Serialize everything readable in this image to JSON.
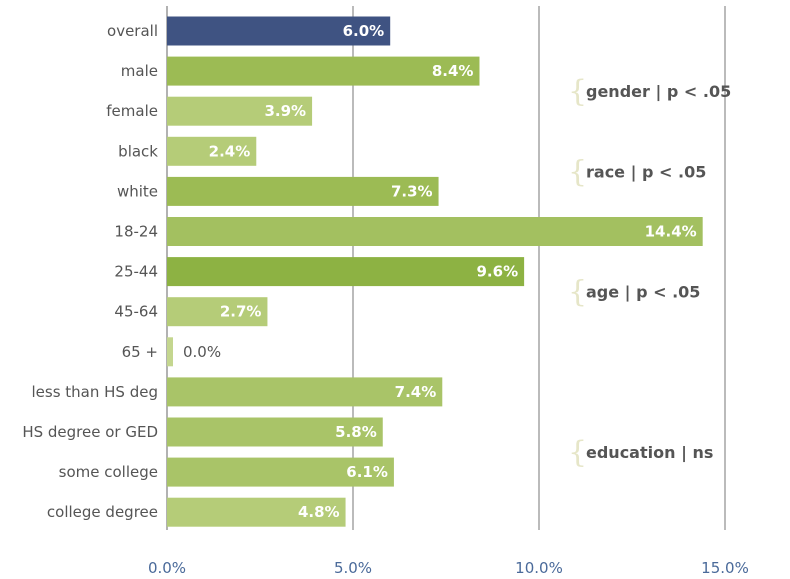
{
  "chart_data": {
    "type": "bar",
    "orientation": "horizontal",
    "categories": [
      "overall",
      "male",
      "female",
      "black",
      "white",
      "18-24",
      "25-44",
      "45-64",
      "65 +",
      "less than HS deg",
      "HS degree or GED",
      "some college",
      "college degree"
    ],
    "values": [
      6.0,
      8.4,
      3.9,
      2.4,
      7.3,
      14.4,
      9.6,
      2.7,
      0.0,
      7.4,
      5.8,
      6.1,
      4.8
    ],
    "value_labels": [
      "6.0%",
      "8.4%",
      "3.9%",
      "2.4%",
      "7.3%",
      "14.4%",
      "9.6%",
      "2.7%",
      "0.0%",
      "7.4%",
      "5.8%",
      "6.1%",
      "4.8%"
    ],
    "bar_colors": [
      "#3f5382",
      "#9cbb54",
      "#b5cc78",
      "#b5cc78",
      "#9cbb54",
      "#a3c060",
      "#8db243",
      "#b5cc78",
      "#c4d68f",
      "#a9c468",
      "#a9c468",
      "#a9c468",
      "#b5cc78"
    ],
    "xlim": [
      0,
      15
    ],
    "xticks": [
      0,
      5,
      10,
      15
    ],
    "xtick_labels": [
      "0.0%",
      "5.0%",
      "10.0%",
      "15.0%"
    ],
    "grid": true,
    "groups": [
      {
        "label": "gender | p < .05",
        "rows": [
          1,
          2
        ]
      },
      {
        "label": "race | p < .05",
        "rows": [
          3,
          4
        ]
      },
      {
        "label": "age | p < .05",
        "rows": [
          5,
          8
        ]
      },
      {
        "label": "education | ns",
        "rows": [
          9,
          12
        ]
      }
    ]
  }
}
